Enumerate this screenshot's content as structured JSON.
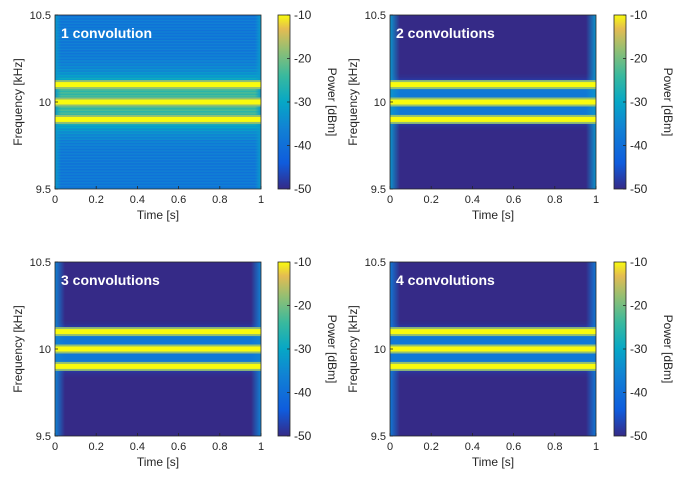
{
  "chart_data": [
    {
      "type": "heatmap",
      "title": "1 convolution",
      "xlabel": "Time [s]",
      "ylabel": "Frequency [kHz]",
      "colorbar_label": "Power [dBm]",
      "xlim": [
        0,
        1
      ],
      "ylim": [
        9.5,
        10.5
      ],
      "clim": [
        -50,
        -10
      ],
      "xticks": [
        "0",
        "0.2",
        "0.4",
        "0.6",
        "0.8",
        "1"
      ],
      "yticks": [
        "9.5",
        "10",
        "10.5"
      ],
      "cbticks": [
        "-10",
        "-20",
        "-30",
        "-40",
        "-50"
      ],
      "background_level": -38,
      "edge_level": -32,
      "lines": [
        {
          "freq": 9.9,
          "power": -10
        },
        {
          "freq": 10.0,
          "power": -10
        },
        {
          "freq": 10.1,
          "power": -10
        }
      ],
      "ripple": true
    },
    {
      "type": "heatmap",
      "title": "2 convolutions",
      "xlabel": "Time [s]",
      "ylabel": "Frequency [kHz]",
      "colorbar_label": "Power [dBm]",
      "xlim": [
        0,
        1
      ],
      "ylim": [
        9.5,
        10.5
      ],
      "clim": [
        -50,
        -10
      ],
      "xticks": [
        "0",
        "0.2",
        "0.4",
        "0.6",
        "0.8",
        "1"
      ],
      "yticks": [
        "9.5",
        "10",
        "10.5"
      ],
      "cbticks": [
        "-10",
        "-20",
        "-30",
        "-40",
        "-50"
      ],
      "background_level": -50,
      "edge_level": -33,
      "lines": [
        {
          "freq": 9.9,
          "power": -10
        },
        {
          "freq": 10.0,
          "power": -10
        },
        {
          "freq": 10.1,
          "power": -10
        }
      ],
      "ripple": false
    },
    {
      "type": "heatmap",
      "title": "3 convolutions",
      "xlabel": "Time [s]",
      "ylabel": "Frequency [kHz]",
      "colorbar_label": "Power [dBm]",
      "xlim": [
        0,
        1
      ],
      "ylim": [
        9.5,
        10.5
      ],
      "clim": [
        -50,
        -10
      ],
      "xticks": [
        "0",
        "0.2",
        "0.4",
        "0.6",
        "0.8",
        "1"
      ],
      "yticks": [
        "9.5",
        "10",
        "10.5"
      ],
      "cbticks": [
        "-10",
        "-20",
        "-30",
        "-40",
        "-50"
      ],
      "background_level": -50,
      "edge_level": -36,
      "lines": [
        {
          "freq": 9.9,
          "power": -10
        },
        {
          "freq": 10.0,
          "power": -10
        },
        {
          "freq": 10.1,
          "power": -10
        }
      ],
      "ripple": false
    },
    {
      "type": "heatmap",
      "title": "4 convolutions",
      "xlabel": "Time [s]",
      "ylabel": "Frequency [kHz]",
      "colorbar_label": "Power [dBm]",
      "xlim": [
        0,
        1
      ],
      "ylim": [
        9.5,
        10.5
      ],
      "clim": [
        -50,
        -10
      ],
      "xticks": [
        "0",
        "0.2",
        "0.4",
        "0.6",
        "0.8",
        "1"
      ],
      "yticks": [
        "9.5",
        "10",
        "10.5"
      ],
      "cbticks": [
        "-10",
        "-20",
        "-30",
        "-40",
        "-50"
      ],
      "background_level": -50,
      "edge_level": -38,
      "lines": [
        {
          "freq": 9.9,
          "power": -10
        },
        {
          "freq": 10.0,
          "power": -10
        },
        {
          "freq": 10.1,
          "power": -10
        }
      ],
      "ripple": false
    }
  ],
  "colors": {
    "parula_low": "#352a87",
    "parula_mid": "#12bcab",
    "parula_high": "#f9fb0e"
  }
}
